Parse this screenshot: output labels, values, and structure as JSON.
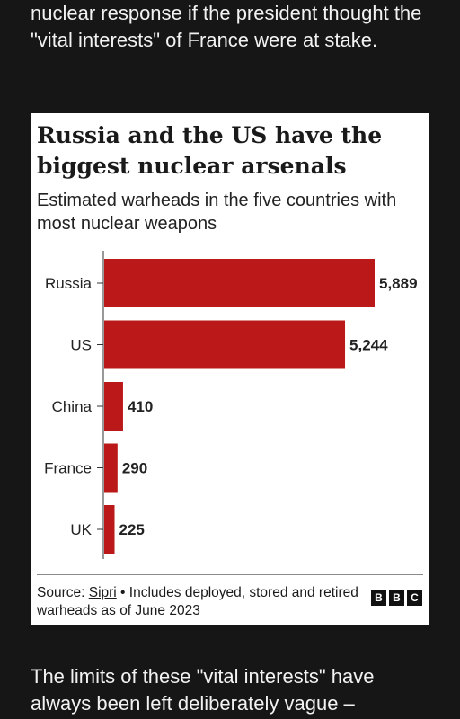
{
  "article": {
    "para_top": "nuclear response if the president thought the \"vital interests\" of France were at stake.",
    "para_bottom": "The limits of these \"vital interests\" have always been left deliberately vague –"
  },
  "chart": {
    "title": "Russia and the US have the biggest nuclear arsenals",
    "subtitle": "Estimated warheads in the five countries with most nuclear weapons",
    "source_prefix": "Source: ",
    "source_link": "Sipri",
    "source_rest": " • Includes deployed, stored and retired warheads as of June 2023",
    "logo_letters": [
      "B",
      "B",
      "C"
    ]
  },
  "chart_data": {
    "type": "bar",
    "orientation": "horizontal",
    "title": "Russia and the US have the biggest nuclear arsenals",
    "subtitle": "Estimated warheads in the five countries with most nuclear weapons",
    "categories": [
      "Russia",
      "US",
      "China",
      "France",
      "UK"
    ],
    "values": [
      5889,
      5244,
      410,
      290,
      225
    ],
    "value_labels": [
      "5,889",
      "5,244",
      "410",
      "290",
      "225"
    ],
    "xlim": [
      0,
      5889
    ],
    "bar_color": "#bb1919",
    "grid": false,
    "legend": "none"
  },
  "colors": {
    "background": "#161616",
    "card": "#ffffff",
    "bar": "#bb1919"
  }
}
